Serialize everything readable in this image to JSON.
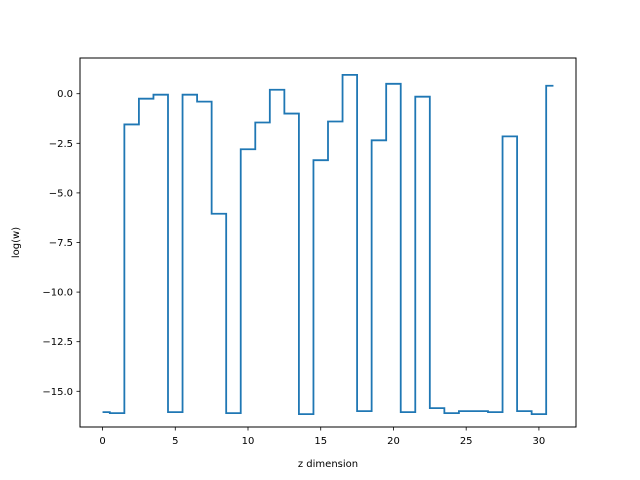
{
  "chart_data": {
    "type": "line",
    "drawstyle": "steps-mid",
    "xlabel": "z dimension",
    "ylabel": "log(w)",
    "xlim": [
      -1.55,
      32.55
    ],
    "ylim": [
      -16.8,
      1.8
    ],
    "xticks": [
      0,
      5,
      10,
      15,
      20,
      25,
      30
    ],
    "yticks": [
      0.0,
      -2.5,
      -5.0,
      -7.5,
      -10.0,
      -12.5,
      -15.0
    ],
    "xtick_labels": [
      "0",
      "5",
      "10",
      "15",
      "20",
      "25",
      "30"
    ],
    "ytick_labels": [
      "0.0",
      "−2.5",
      "−5.0",
      "−7.5",
      "−10.0",
      "−12.5",
      "−15.0"
    ],
    "grid": false,
    "series": [
      {
        "color": "#1f77b4",
        "x": [
          0,
          1,
          2,
          3,
          4,
          5,
          6,
          7,
          8,
          9,
          10,
          11,
          12,
          13,
          14,
          15,
          16,
          17,
          18,
          19,
          20,
          21,
          22,
          23,
          24,
          25,
          26,
          27,
          28,
          29,
          30,
          31
        ],
        "y": [
          -16.05,
          -16.1,
          -1.55,
          -0.25,
          -0.05,
          -16.05,
          -0.05,
          -0.4,
          -6.05,
          -16.1,
          -2.8,
          -1.45,
          0.2,
          -1.0,
          -16.15,
          -3.35,
          -1.4,
          0.95,
          -16.0,
          -2.35,
          0.5,
          -16.05,
          -0.15,
          -15.85,
          -16.1,
          -16.0,
          -16.0,
          -16.05,
          -2.15,
          -16.0,
          -16.15,
          0.4
        ]
      }
    ]
  }
}
